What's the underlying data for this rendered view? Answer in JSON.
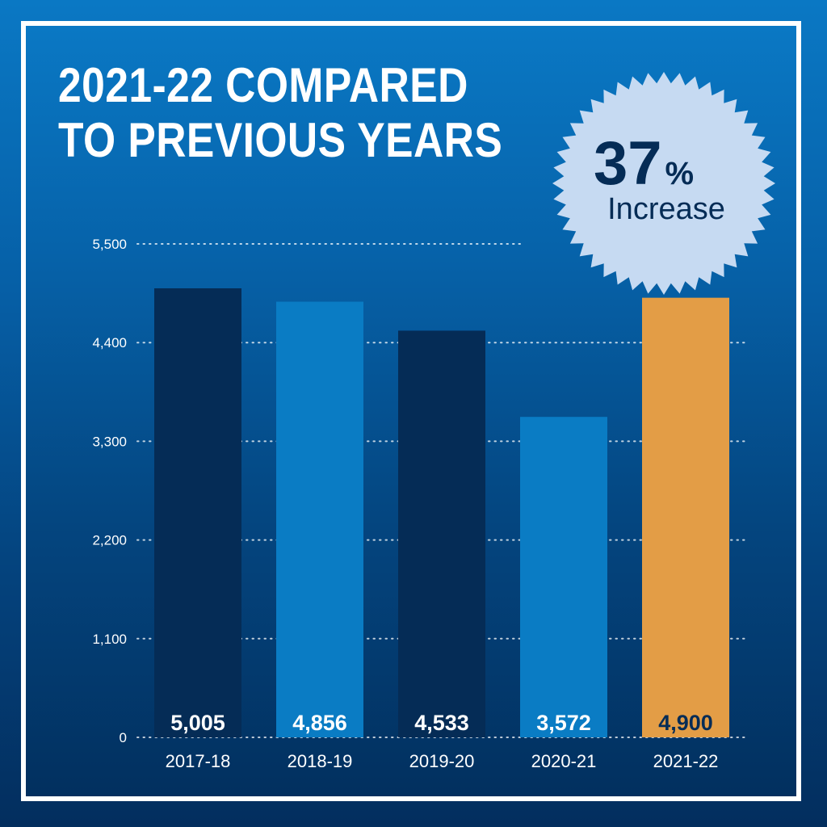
{
  "title_lines": [
    "2021-22 COMPARED",
    "TO PREVIOUS YEARS"
  ],
  "badge": {
    "number": "37",
    "suffix": "%",
    "label": "Increase"
  },
  "colors": {
    "dark_bar": "#052c56",
    "light_bar": "#0a7cc4",
    "highlight_bar": "#e39d46",
    "badge_fill": "#c6daf2",
    "badge_text": "#052c56"
  },
  "chart_data": {
    "type": "bar",
    "title": "2021-22 COMPARED TO PREVIOUS YEARS",
    "xlabel": "",
    "ylabel": "",
    "ylim": [
      0,
      5500
    ],
    "yticks": [
      0,
      1100,
      2200,
      3300,
      4400,
      5500
    ],
    "ytick_labels": [
      "0",
      "1,100",
      "2,200",
      "3,300",
      "4,400",
      "5,500"
    ],
    "categories": [
      "2017-18",
      "2018-19",
      "2019-20",
      "2020-21",
      "2021-22"
    ],
    "values": [
      5005,
      4856,
      4533,
      3572,
      4900
    ],
    "value_labels": [
      "5,005",
      "4,856",
      "4,533",
      "3,572",
      "4,900"
    ],
    "bar_colors": [
      "#052c56",
      "#0a7cc4",
      "#052c56",
      "#0a7cc4",
      "#e39d46"
    ],
    "value_label_colors": [
      "#ffffff",
      "#ffffff",
      "#ffffff",
      "#ffffff",
      "#052c56"
    ],
    "grid": true,
    "legend": "none"
  }
}
